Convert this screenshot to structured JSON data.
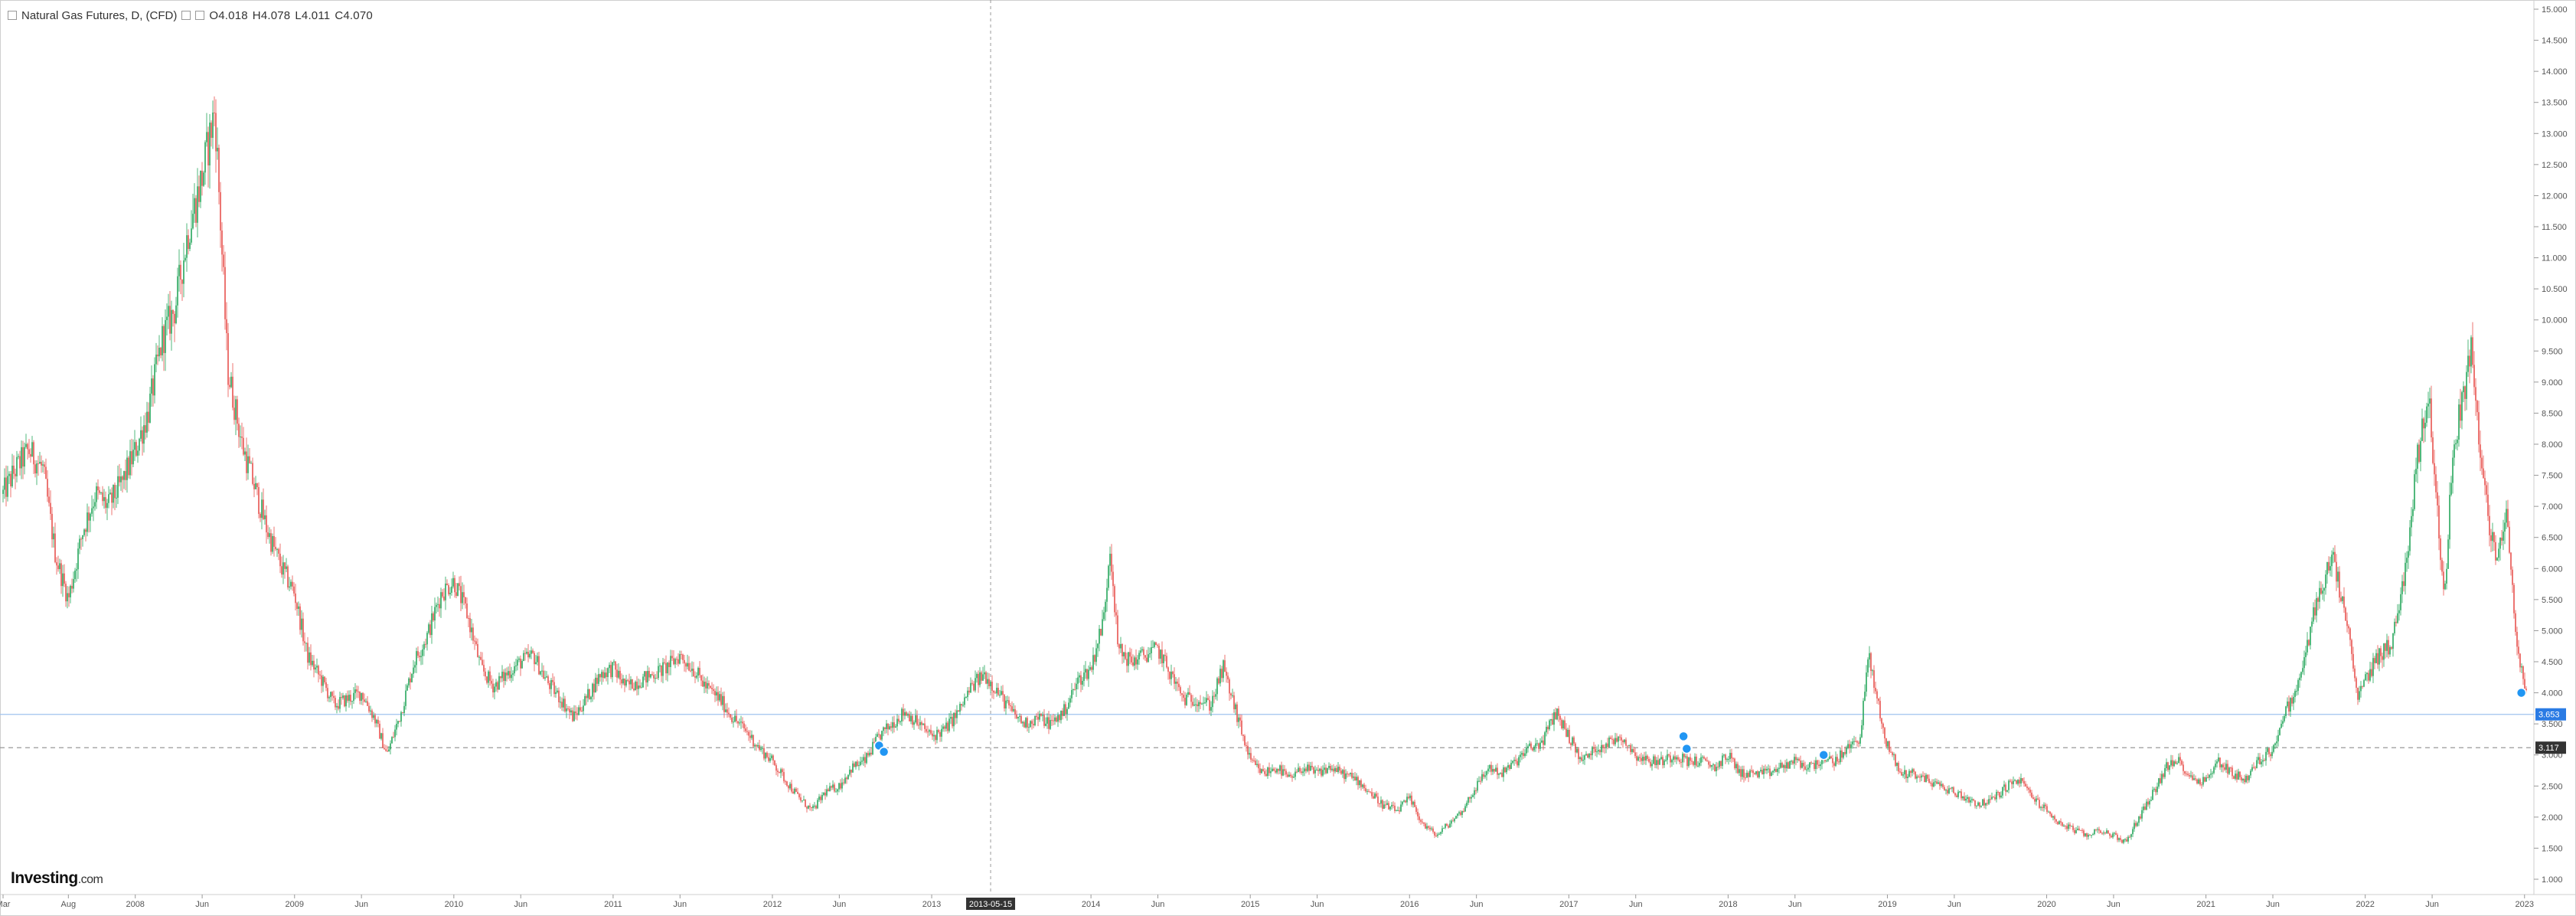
{
  "header": {
    "symbol": "Natural Gas Futures, D, (CFD)",
    "open": "O4.018",
    "high": "H4.078",
    "low": "L4.011",
    "close": "C4.070"
  },
  "watermark": {
    "brand": "Investing",
    "suffix": ".com"
  },
  "colors": {
    "up": "#26a65b",
    "down": "#e8534f",
    "bg": "#ffffff",
    "grid": "#e6e6e6",
    "hline": "#9fc3ee",
    "badge_blue": "#2a7be4",
    "badge_dark": "#333333",
    "event": "#2196f3"
  },
  "chart_data": {
    "type": "candlestick",
    "title": "Natural Gas Futures, D, (CFD)",
    "x_range": [
      "2007-03",
      "2023-01"
    ],
    "ylim": [
      0.8,
      15.2
    ],
    "y_ticks": [
      "15.000",
      "14.500",
      "14.000",
      "13.500",
      "13.000",
      "12.500",
      "12.000",
      "11.500",
      "11.000",
      "10.500",
      "10.000",
      "9.500",
      "9.000",
      "8.500",
      "8.000",
      "7.500",
      "7.000",
      "6.500",
      "6.000",
      "5.500",
      "5.000",
      "4.500",
      "4.000",
      "3.500",
      "3.000",
      "2.500",
      "2.000",
      "1.500",
      "1.000"
    ],
    "x_ticks": [
      {
        "t": 2007.17,
        "label": "Mar"
      },
      {
        "t": 2007.58,
        "label": "Aug"
      },
      {
        "t": 2008.0,
        "label": "2008"
      },
      {
        "t": 2008.42,
        "label": "Jun"
      },
      {
        "t": 2009.0,
        "label": "2009"
      },
      {
        "t": 2009.42,
        "label": "Jun"
      },
      {
        "t": 2010.0,
        "label": "2010"
      },
      {
        "t": 2010.42,
        "label": "Jun"
      },
      {
        "t": 2011.0,
        "label": "2011"
      },
      {
        "t": 2011.42,
        "label": "Jun"
      },
      {
        "t": 2012.0,
        "label": "2012"
      },
      {
        "t": 2012.42,
        "label": "Jun"
      },
      {
        "t": 2013.0,
        "label": "2013"
      },
      {
        "t": 2014.0,
        "label": "2014"
      },
      {
        "t": 2014.42,
        "label": "Jun"
      },
      {
        "t": 2015.0,
        "label": "2015"
      },
      {
        "t": 2015.42,
        "label": "Jun"
      },
      {
        "t": 2016.0,
        "label": "2016"
      },
      {
        "t": 2016.42,
        "label": "Jun"
      },
      {
        "t": 2017.0,
        "label": "2017"
      },
      {
        "t": 2017.42,
        "label": "Jun"
      },
      {
        "t": 2018.0,
        "label": "2018"
      },
      {
        "t": 2018.42,
        "label": "Jun"
      },
      {
        "t": 2019.0,
        "label": "2019"
      },
      {
        "t": 2019.42,
        "label": "Jun"
      },
      {
        "t": 2020.0,
        "label": "2020"
      },
      {
        "t": 2020.42,
        "label": "Jun"
      },
      {
        "t": 2021.0,
        "label": "2021"
      },
      {
        "t": 2021.42,
        "label": "Jun"
      },
      {
        "t": 2022.0,
        "label": "2022"
      },
      {
        "t": 2022.42,
        "label": "Jun"
      },
      {
        "t": 2023.0,
        "label": "2023"
      }
    ],
    "crosshair": {
      "t": 2013.37,
      "label": "2013-05-15"
    },
    "price_lines": [
      {
        "value": 3.653,
        "label": "3.653",
        "style": "solid"
      },
      {
        "value": 3.117,
        "label": "3.117",
        "style": "dashed"
      }
    ],
    "event_markers": [
      {
        "t": 2012.67,
        "value": 3.15
      },
      {
        "t": 2012.7,
        "value": 3.05
      },
      {
        "t": 2017.72,
        "value": 3.3
      },
      {
        "t": 2017.74,
        "value": 3.1
      },
      {
        "t": 2018.6,
        "value": 3.0
      },
      {
        "t": 2022.98,
        "value": 4.0
      }
    ],
    "series": [
      {
        "price_path": [
          [
            2007.17,
            7.2
          ],
          [
            2007.25,
            7.6
          ],
          [
            2007.33,
            7.9
          ],
          [
            2007.42,
            7.6
          ],
          [
            2007.5,
            6.2
          ],
          [
            2007.58,
            5.5
          ],
          [
            2007.67,
            6.6
          ],
          [
            2007.75,
            7.2
          ],
          [
            2007.83,
            7.0
          ],
          [
            2007.92,
            7.4
          ],
          [
            2008.0,
            7.9
          ],
          [
            2008.08,
            8.5
          ],
          [
            2008.17,
            9.7
          ],
          [
            2008.25,
            10.2
          ],
          [
            2008.33,
            11.4
          ],
          [
            2008.42,
            12.3
          ],
          [
            2008.5,
            13.4
          ],
          [
            2008.58,
            9.2
          ],
          [
            2008.67,
            8.0
          ],
          [
            2008.75,
            7.3
          ],
          [
            2008.83,
            6.6
          ],
          [
            2008.92,
            6.0
          ],
          [
            2009.0,
            5.6
          ],
          [
            2009.08,
            4.6
          ],
          [
            2009.17,
            4.2
          ],
          [
            2009.25,
            3.8
          ],
          [
            2009.33,
            3.9
          ],
          [
            2009.42,
            4.0
          ],
          [
            2009.5,
            3.6
          ],
          [
            2009.58,
            3.0
          ],
          [
            2009.67,
            3.7
          ],
          [
            2009.75,
            4.5
          ],
          [
            2009.83,
            4.9
          ],
          [
            2009.92,
            5.6
          ],
          [
            2010.0,
            5.8
          ],
          [
            2010.08,
            5.3
          ],
          [
            2010.17,
            4.4
          ],
          [
            2010.25,
            4.1
          ],
          [
            2010.33,
            4.3
          ],
          [
            2010.42,
            4.5
          ],
          [
            2010.5,
            4.6
          ],
          [
            2010.58,
            4.2
          ],
          [
            2010.67,
            3.9
          ],
          [
            2010.75,
            3.6
          ],
          [
            2010.83,
            3.9
          ],
          [
            2010.92,
            4.3
          ],
          [
            2011.0,
            4.4
          ],
          [
            2011.08,
            4.1
          ],
          [
            2011.17,
            4.2
          ],
          [
            2011.25,
            4.3
          ],
          [
            2011.33,
            4.4
          ],
          [
            2011.42,
            4.6
          ],
          [
            2011.5,
            4.4
          ],
          [
            2011.58,
            4.1
          ],
          [
            2011.67,
            3.9
          ],
          [
            2011.75,
            3.6
          ],
          [
            2011.83,
            3.4
          ],
          [
            2011.92,
            3.1
          ],
          [
            2012.0,
            2.9
          ],
          [
            2012.08,
            2.6
          ],
          [
            2012.17,
            2.3
          ],
          [
            2012.25,
            2.1
          ],
          [
            2012.33,
            2.4
          ],
          [
            2012.42,
            2.5
          ],
          [
            2012.5,
            2.8
          ],
          [
            2012.58,
            2.9
          ],
          [
            2012.67,
            3.3
          ],
          [
            2012.75,
            3.5
          ],
          [
            2012.83,
            3.7
          ],
          [
            2012.92,
            3.5
          ],
          [
            2013.0,
            3.3
          ],
          [
            2013.08,
            3.4
          ],
          [
            2013.17,
            3.7
          ],
          [
            2013.25,
            4.1
          ],
          [
            2013.33,
            4.3
          ],
          [
            2013.42,
            4.0
          ],
          [
            2013.5,
            3.7
          ],
          [
            2013.58,
            3.5
          ],
          [
            2013.67,
            3.6
          ],
          [
            2013.75,
            3.5
          ],
          [
            2013.83,
            3.7
          ],
          [
            2013.92,
            4.2
          ],
          [
            2014.0,
            4.4
          ],
          [
            2014.08,
            5.2
          ],
          [
            2014.12,
            6.4
          ],
          [
            2014.17,
            4.7
          ],
          [
            2014.25,
            4.5
          ],
          [
            2014.33,
            4.6
          ],
          [
            2014.42,
            4.7
          ],
          [
            2014.5,
            4.3
          ],
          [
            2014.58,
            3.9
          ],
          [
            2014.67,
            3.9
          ],
          [
            2014.75,
            3.8
          ],
          [
            2014.83,
            4.4
          ],
          [
            2014.92,
            3.6
          ],
          [
            2015.0,
            2.9
          ],
          [
            2015.08,
            2.7
          ],
          [
            2015.17,
            2.8
          ],
          [
            2015.25,
            2.6
          ],
          [
            2015.33,
            2.8
          ],
          [
            2015.42,
            2.7
          ],
          [
            2015.5,
            2.8
          ],
          [
            2015.58,
            2.7
          ],
          [
            2015.67,
            2.6
          ],
          [
            2015.75,
            2.4
          ],
          [
            2015.83,
            2.2
          ],
          [
            2015.92,
            2.1
          ],
          [
            2016.0,
            2.3
          ],
          [
            2016.08,
            1.9
          ],
          [
            2016.17,
            1.7
          ],
          [
            2016.25,
            1.9
          ],
          [
            2016.33,
            2.1
          ],
          [
            2016.42,
            2.5
          ],
          [
            2016.5,
            2.8
          ],
          [
            2016.58,
            2.7
          ],
          [
            2016.67,
            2.9
          ],
          [
            2016.75,
            3.1
          ],
          [
            2016.83,
            3.2
          ],
          [
            2016.92,
            3.7
          ],
          [
            2017.0,
            3.3
          ],
          [
            2017.08,
            2.9
          ],
          [
            2017.17,
            3.1
          ],
          [
            2017.25,
            3.2
          ],
          [
            2017.33,
            3.3
          ],
          [
            2017.42,
            3.0
          ],
          [
            2017.5,
            2.9
          ],
          [
            2017.58,
            2.9
          ],
          [
            2017.67,
            3.0
          ],
          [
            2017.75,
            2.9
          ],
          [
            2017.83,
            2.9
          ],
          [
            2017.92,
            2.8
          ],
          [
            2018.0,
            3.0
          ],
          [
            2018.08,
            2.7
          ],
          [
            2018.17,
            2.7
          ],
          [
            2018.25,
            2.7
          ],
          [
            2018.33,
            2.8
          ],
          [
            2018.42,
            2.9
          ],
          [
            2018.5,
            2.8
          ],
          [
            2018.58,
            2.9
          ],
          [
            2018.67,
            2.9
          ],
          [
            2018.75,
            3.1
          ],
          [
            2018.83,
            3.3
          ],
          [
            2018.88,
            4.6
          ],
          [
            2018.92,
            4.1
          ],
          [
            2018.98,
            3.3
          ],
          [
            2019.08,
            2.7
          ],
          [
            2019.17,
            2.7
          ],
          [
            2019.25,
            2.6
          ],
          [
            2019.33,
            2.5
          ],
          [
            2019.42,
            2.4
          ],
          [
            2019.5,
            2.3
          ],
          [
            2019.58,
            2.2
          ],
          [
            2019.67,
            2.3
          ],
          [
            2019.75,
            2.5
          ],
          [
            2019.83,
            2.6
          ],
          [
            2019.92,
            2.3
          ],
          [
            2020.0,
            2.1
          ],
          [
            2020.08,
            1.9
          ],
          [
            2020.17,
            1.8
          ],
          [
            2020.25,
            1.7
          ],
          [
            2020.33,
            1.8
          ],
          [
            2020.42,
            1.7
          ],
          [
            2020.5,
            1.6
          ],
          [
            2020.58,
            2.0
          ],
          [
            2020.67,
            2.4
          ],
          [
            2020.75,
            2.8
          ],
          [
            2020.83,
            2.9
          ],
          [
            2020.92,
            2.6
          ],
          [
            2021.0,
            2.6
          ],
          [
            2021.08,
            2.9
          ],
          [
            2021.17,
            2.7
          ],
          [
            2021.25,
            2.6
          ],
          [
            2021.33,
            2.9
          ],
          [
            2021.42,
            3.1
          ],
          [
            2021.5,
            3.7
          ],
          [
            2021.58,
            4.1
          ],
          [
            2021.67,
            5.2
          ],
          [
            2021.75,
            5.9
          ],
          [
            2021.8,
            6.1
          ],
          [
            2021.88,
            5.2
          ],
          [
            2021.95,
            3.9
          ],
          [
            2022.0,
            4.2
          ],
          [
            2022.08,
            4.6
          ],
          [
            2022.17,
            4.8
          ],
          [
            2022.25,
            6.0
          ],
          [
            2022.33,
            7.8
          ],
          [
            2022.4,
            8.9
          ],
          [
            2022.45,
            6.9
          ],
          [
            2022.5,
            5.6
          ],
          [
            2022.55,
            7.9
          ],
          [
            2022.62,
            8.9
          ],
          [
            2022.67,
            9.6
          ],
          [
            2022.72,
            7.8
          ],
          [
            2022.78,
            6.7
          ],
          [
            2022.83,
            6.0
          ],
          [
            2022.88,
            7.0
          ],
          [
            2022.92,
            5.8
          ],
          [
            2022.96,
            4.6
          ],
          [
            2023.0,
            4.07
          ]
        ]
      }
    ]
  }
}
